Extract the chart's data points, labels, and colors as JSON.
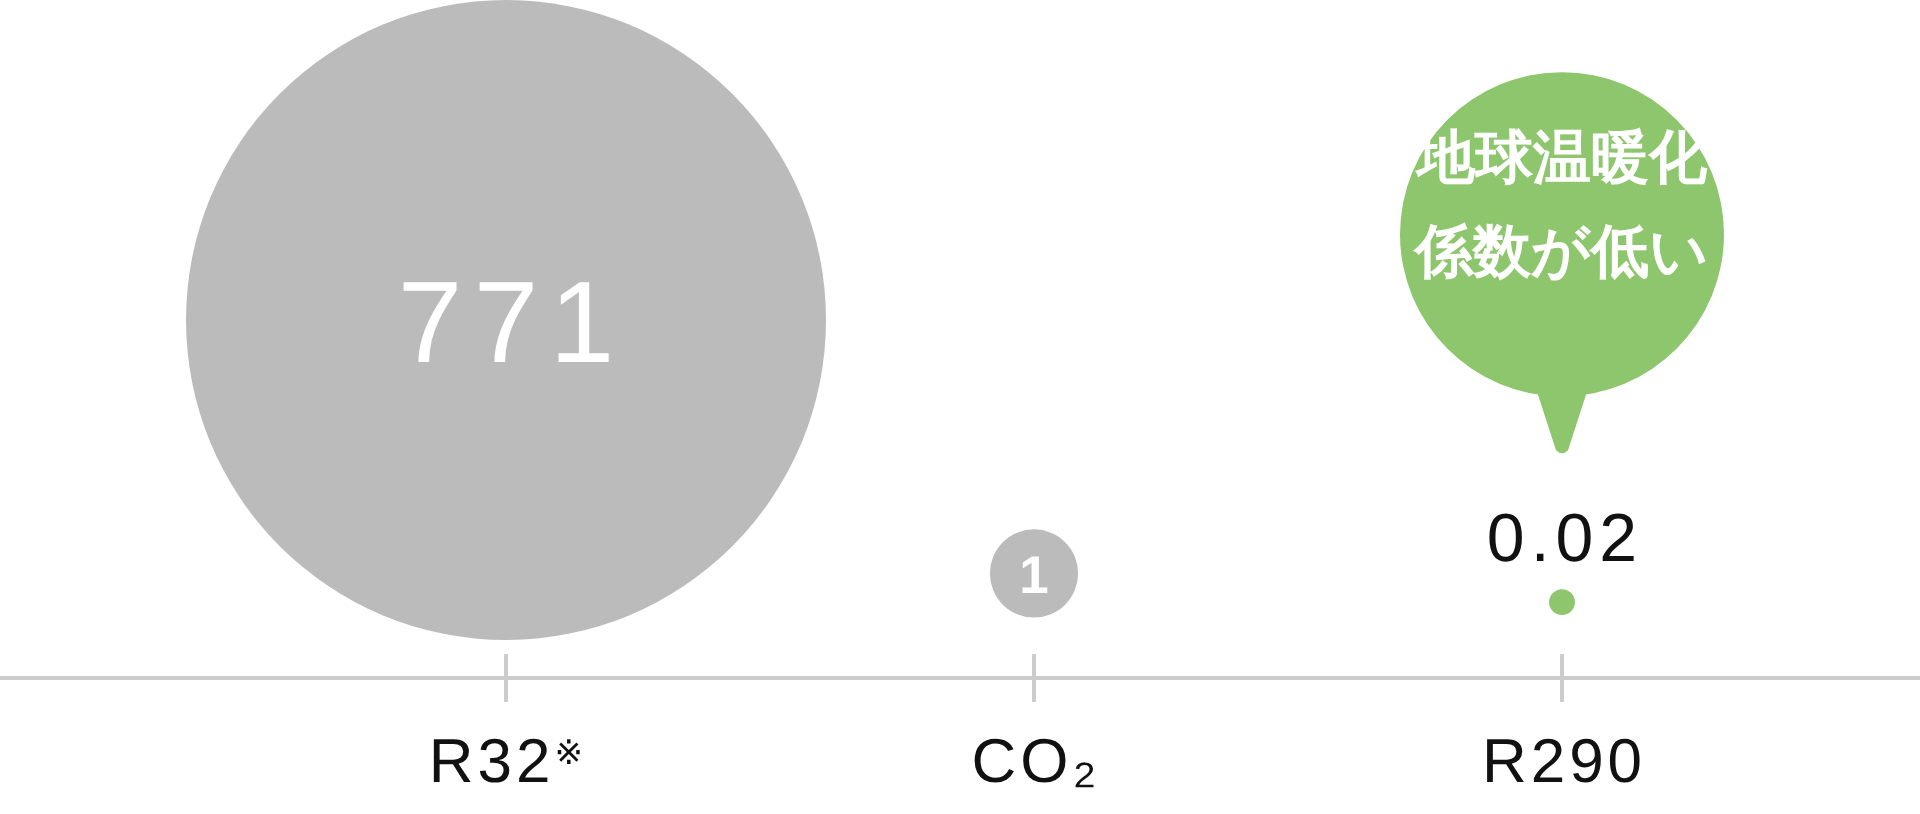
{
  "chart_data": {
    "type": "other",
    "categories": [
      "R32$^{※}$",
      "CO₂",
      "R290"
    ],
    "values": [
      771,
      1,
      0.02
    ],
    "colors": [
      "#bbbbbb",
      "#bbbbbb",
      "#8dc66d"
    ],
    "data_labels": true,
    "annotations": [
      {
        "text": "地球温暖化係数が低い",
        "x": "R290"
      }
    ]
  }
}
